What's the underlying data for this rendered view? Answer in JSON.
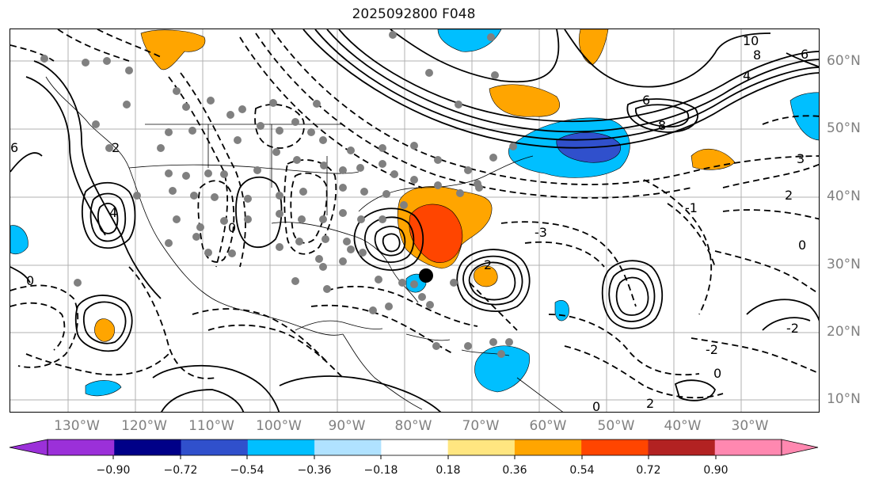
{
  "title": "2025092800 F048",
  "map": {
    "lat_labels": [
      "60°N",
      "50°N",
      "40°N",
      "30°N",
      "20°N",
      "10°N"
    ],
    "lon_labels": [
      "130°W",
      "120°W",
      "110°W",
      "100°W",
      "90°W",
      "80°W",
      "70°W",
      "60°W",
      "50°W",
      "40°W",
      "30°W"
    ],
    "contour_labels": [
      "10",
      "8",
      "6",
      "4",
      "6",
      "8",
      "3",
      "2",
      "0",
      "-1",
      "-3",
      "2",
      "0",
      "-2",
      "0",
      "2",
      "-2",
      "0",
      "2",
      "0",
      "4",
      "6"
    ]
  },
  "colorbar": {
    "tick_labels": [
      "−0.90",
      "−0.72",
      "−0.54",
      "−0.36",
      "−0.18",
      "0.18",
      "0.36",
      "0.54",
      "0.72",
      "0.90"
    ],
    "under_color": "#9b30d9",
    "over_color": "#ff88b0",
    "bin_colors": [
      "#9b30d9",
      "#000088",
      "#3050cc",
      "#00bfff",
      "#b0e2ff",
      "#ffffff",
      "#ffe680",
      "#ffa500",
      "#ff4500",
      "#b22222",
      "#ff88b0"
    ]
  },
  "colors": {
    "shade_warm": "#ffa500",
    "shade_hot": "#ff4500",
    "shade_cold": "#00bfff",
    "shade_colder": "#3050cc",
    "station_dot": "#808080"
  }
}
